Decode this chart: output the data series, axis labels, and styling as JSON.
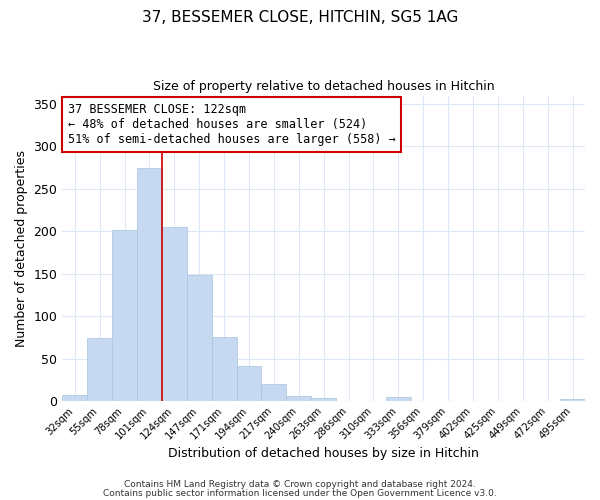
{
  "title": "37, BESSEMER CLOSE, HITCHIN, SG5 1AG",
  "subtitle": "Size of property relative to detached houses in Hitchin",
  "xlabel": "Distribution of detached houses by size in Hitchin",
  "ylabel": "Number of detached properties",
  "bar_labels": [
    "32sqm",
    "55sqm",
    "78sqm",
    "101sqm",
    "124sqm",
    "147sqm",
    "171sqm",
    "194sqm",
    "217sqm",
    "240sqm",
    "263sqm",
    "286sqm",
    "310sqm",
    "333sqm",
    "356sqm",
    "379sqm",
    "402sqm",
    "425sqm",
    "449sqm",
    "472sqm",
    "495sqm"
  ],
  "bar_heights": [
    7,
    74,
    202,
    275,
    205,
    149,
    75,
    41,
    20,
    6,
    4,
    0,
    0,
    5,
    0,
    0,
    0,
    0,
    0,
    0,
    2
  ],
  "bar_color": "#c6d9f0",
  "bar_edge_color": "#a8c4e0",
  "ylim": [
    0,
    360
  ],
  "yticks": [
    0,
    50,
    100,
    150,
    200,
    250,
    300,
    350
  ],
  "property_label": "37 BESSEMER CLOSE: 122sqm",
  "annotation_line1": "← 48% of detached houses are smaller (524)",
  "annotation_line2": "51% of semi-detached houses are larger (558) →",
  "vline_x_index": 3,
  "vline_color": "#cc0000",
  "annotation_box_color": "#ffffff",
  "annotation_box_edge": "#cc0000",
  "footer1": "Contains HM Land Registry data © Crown copyright and database right 2024.",
  "footer2": "Contains public sector information licensed under the Open Government Licence v3.0.",
  "background_color": "#ffffff",
  "grid_color": "#dce8f5"
}
